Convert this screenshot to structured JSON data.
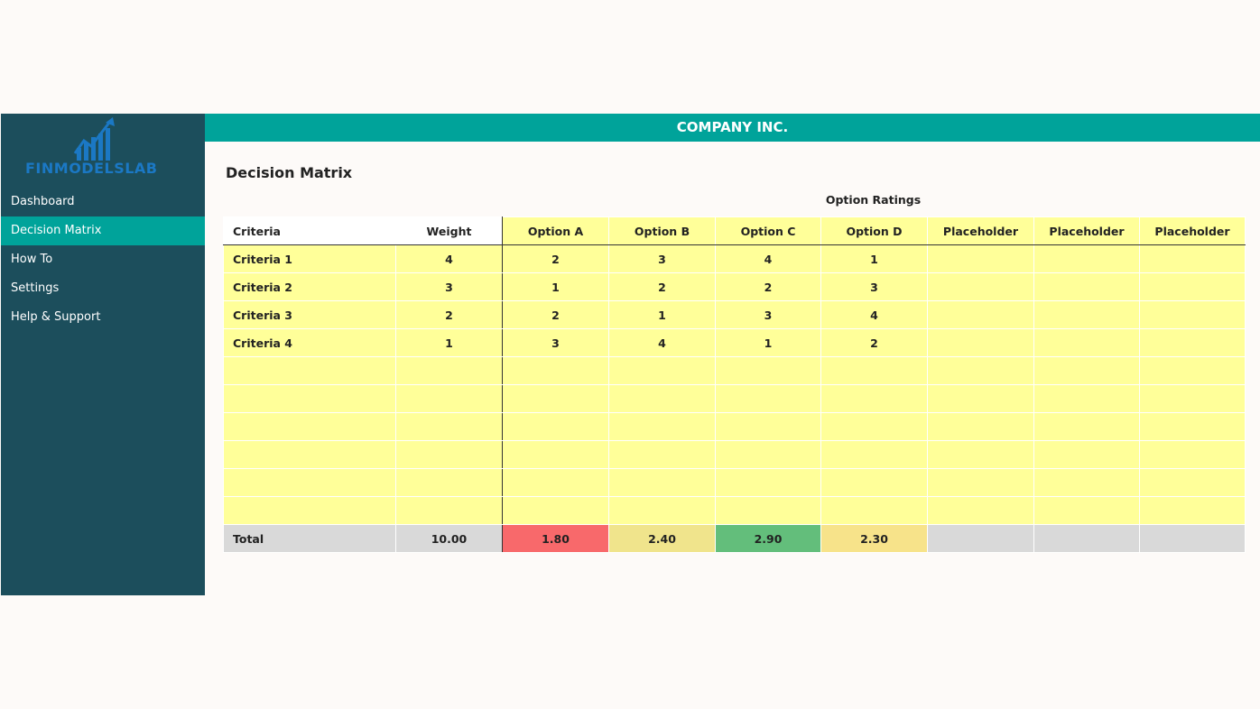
{
  "logo": {
    "text": "FINMODELSLAB",
    "color": "#1b78c4"
  },
  "sidebar": {
    "items": [
      {
        "label": "Dashboard",
        "active": false
      },
      {
        "label": "Decision Matrix",
        "active": true
      },
      {
        "label": "How To",
        "active": false
      },
      {
        "label": "Settings",
        "active": false
      },
      {
        "label": "Help & Support",
        "active": false
      }
    ]
  },
  "header": {
    "title": "COMPANY INC."
  },
  "page": {
    "title": "Decision Matrix",
    "group_label": "Option Ratings"
  },
  "table": {
    "headers": [
      "Criteria",
      "Weight",
      "Option A",
      "Option B",
      "Option C",
      "Option D",
      "Placeholder",
      "Placeholder",
      "Placeholder"
    ],
    "rows": [
      [
        "Criteria 1",
        "4",
        "2",
        "3",
        "4",
        "1",
        "",
        "",
        ""
      ],
      [
        "Criteria 2",
        "3",
        "1",
        "2",
        "2",
        "3",
        "",
        "",
        ""
      ],
      [
        "Criteria 3",
        "2",
        "2",
        "1",
        "3",
        "4",
        "",
        "",
        ""
      ],
      [
        "Criteria 4",
        "1",
        "3",
        "4",
        "1",
        "2",
        "",
        "",
        ""
      ],
      [
        "",
        "",
        "",
        "",
        "",
        "",
        "",
        "",
        ""
      ],
      [
        "",
        "",
        "",
        "",
        "",
        "",
        "",
        "",
        ""
      ],
      [
        "",
        "",
        "",
        "",
        "",
        "",
        "",
        "",
        ""
      ],
      [
        "",
        "",
        "",
        "",
        "",
        "",
        "",
        "",
        ""
      ],
      [
        "",
        "",
        "",
        "",
        "",
        "",
        "",
        "",
        ""
      ],
      [
        "",
        "",
        "",
        "",
        "",
        "",
        "",
        "",
        ""
      ]
    ],
    "total": {
      "label": "Total",
      "values": [
        "10.00",
        "1.80",
        "2.40",
        "2.90",
        "2.30",
        "",
        "",
        ""
      ],
      "colors": [
        "#d9d9d9",
        "#f8696b",
        "#f0e48c",
        "#63be7b",
        "#f7e38a",
        "#d9d9d9",
        "#d9d9d9",
        "#d9d9d9"
      ]
    }
  },
  "colors": {
    "sidebar_bg": "#1c4e5c",
    "accent": "#00a39a",
    "input_cell": "#ffff99",
    "total_bg": "#d9d9d9"
  }
}
